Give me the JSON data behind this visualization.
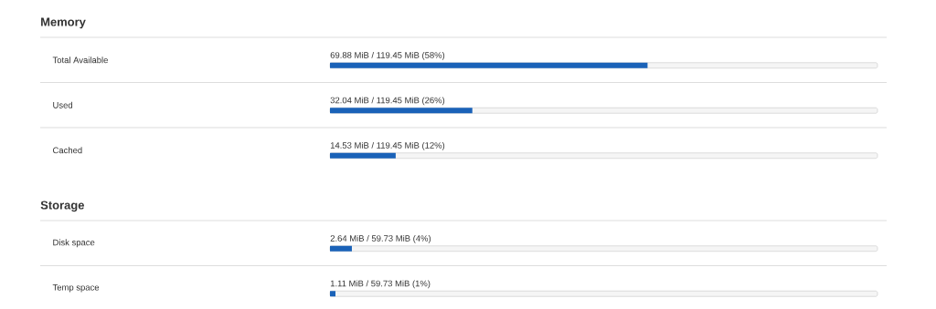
{
  "chart_data": [
    {
      "type": "bar",
      "orientation": "horizontal",
      "title": "Memory",
      "categories": [
        "Total Available",
        "Used",
        "Cached"
      ],
      "values": [
        58,
        26,
        12
      ],
      "value_labels": [
        "69.88 MiB / 119.45 MiB (58%)",
        "32.04 MiB / 119.45 MiB (26%)",
        "14.53 MiB / 119.45 MiB (12%)"
      ],
      "color": "#1a62b8",
      "xlim": [
        0,
        100
      ],
      "tick_labels": "y"
    },
    {
      "type": "bar",
      "orientation": "horizontal",
      "title": "Storage",
      "categories": [
        "Disk space",
        "Temp space"
      ],
      "values": [
        4,
        1
      ],
      "value_labels": [
        "2.64 MiB / 59.73 MiB (4%)",
        "1.11 MiB / 59.73 MiB (1%)"
      ],
      "color": "#1a62b8",
      "xlim": [
        0,
        100
      ],
      "tick_labels": "y"
    }
  ]
}
